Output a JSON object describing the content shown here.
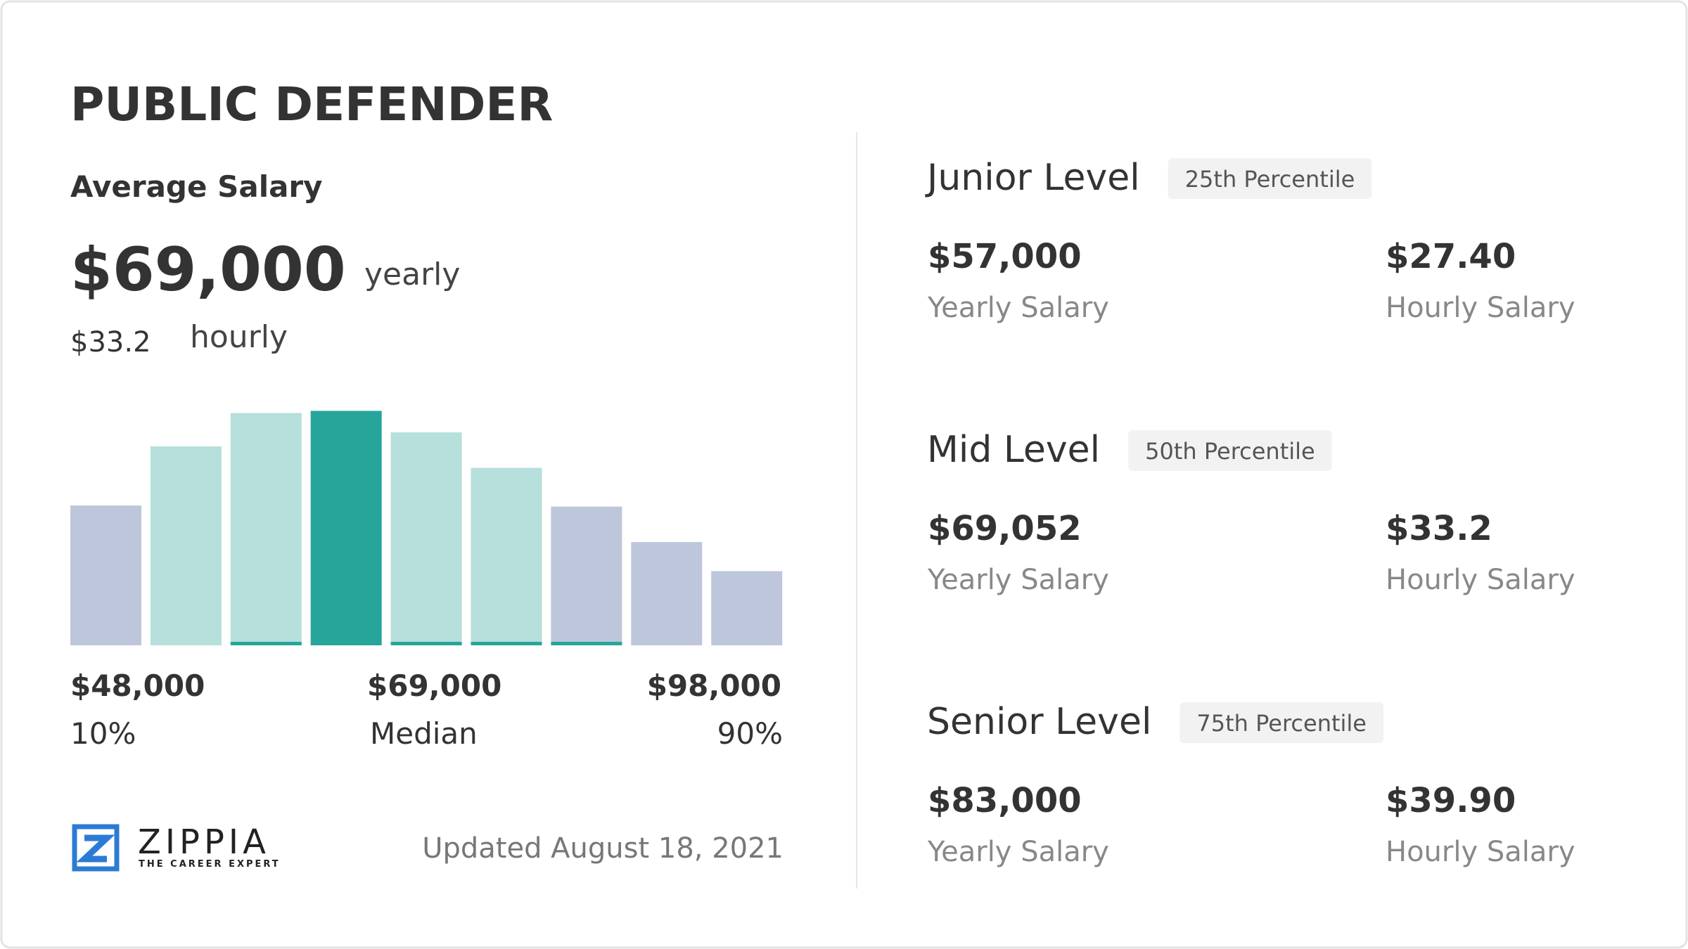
{
  "header": {
    "title": "PUBLIC DEFENDER"
  },
  "average": {
    "label": "Average Salary",
    "yearly_value": "$69,000",
    "yearly_unit": "yearly",
    "hourly_value": "$33.2",
    "hourly_unit": "hourly"
  },
  "chart_data": {
    "type": "bar",
    "values": [
      130,
      185,
      216,
      218,
      198,
      165,
      129,
      96,
      69
    ],
    "colors": [
      "#bdc6db",
      "#b7dfdb",
      "#b7dfdb",
      "#26a69a",
      "#b7dfdb",
      "#b7dfdb",
      "#bdc6db",
      "#bdc6db",
      "#bdc6db"
    ],
    "underline": [
      false,
      false,
      true,
      false,
      true,
      true,
      true,
      false,
      false
    ],
    "underline_color": "#26a69a",
    "markers": [
      {
        "value": "$48,000",
        "label": "10%"
      },
      {
        "value": "$69,000",
        "label": "Median"
      },
      {
        "value": "$98,000",
        "label": "90%"
      }
    ]
  },
  "levels": [
    {
      "name": "Junior Level",
      "percentile": "25th Percentile",
      "yearly": "$57,000",
      "yearly_label": "Yearly Salary",
      "hourly": "$27.40",
      "hourly_label": "Hourly Salary"
    },
    {
      "name": "Mid Level",
      "percentile": "50th Percentile",
      "yearly": "$69,052",
      "yearly_label": "Yearly Salary",
      "hourly": "$33.2",
      "hourly_label": "Hourly Salary"
    },
    {
      "name": "Senior Level",
      "percentile": "75th Percentile",
      "yearly": "$83,000",
      "yearly_label": "Yearly Salary",
      "hourly": "$39.90",
      "hourly_label": "Hourly Salary"
    }
  ],
  "footer": {
    "brand": "ZIPPIA",
    "tagline": "THE CAREER EXPERT",
    "updated": "Updated August 18, 2021"
  }
}
